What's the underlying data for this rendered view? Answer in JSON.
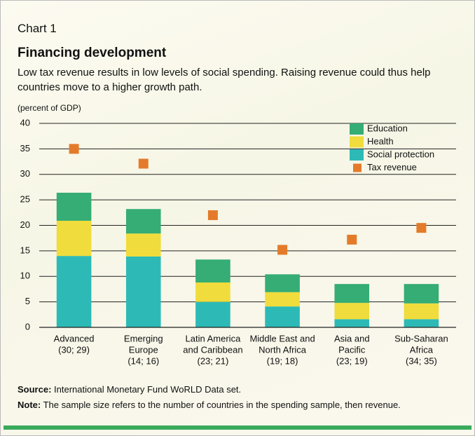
{
  "header": {
    "kicker": "Chart 1",
    "title": "Financing development",
    "subtitle": "Low tax revenue results in low levels of social spending. Raising revenue could thus help countries move to a higher growth path."
  },
  "chart_data": {
    "type": "bar",
    "stacked": true,
    "y_label": "(percent of GDP)",
    "categories": [
      [
        "Advanced",
        "(30; 29)"
      ],
      [
        "Emerging",
        "Europe",
        "(14; 16)"
      ],
      [
        "Latin America",
        "and Caribbean",
        "(23; 21)"
      ],
      [
        "Middle East and",
        "North Africa",
        "(19; 18)"
      ],
      [
        "Asia and",
        "Pacific",
        "(23; 19)"
      ],
      [
        "Sub-Saharan",
        "Africa",
        "(34; 35)"
      ]
    ],
    "series": [
      {
        "name": "Social protection",
        "color": "#2dbab6",
        "values": [
          14.0,
          13.9,
          5.0,
          4.1,
          1.6,
          1.6
        ]
      },
      {
        "name": "Health",
        "color": "#f0dc3c",
        "values": [
          6.9,
          4.5,
          3.8,
          2.8,
          3.2,
          3.1
        ]
      },
      {
        "name": "Education",
        "color": "#35ad74",
        "values": [
          5.5,
          4.8,
          4.5,
          3.5,
          3.7,
          3.8
        ]
      },
      {
        "name": "Tax revenue",
        "color": "#e47b2a",
        "type": "scatter",
        "values": [
          35.0,
          32.1,
          22.0,
          15.2,
          17.2,
          19.5
        ]
      }
    ],
    "ylim": [
      0,
      40
    ],
    "yticks": [
      0,
      5,
      10,
      15,
      20,
      25,
      30,
      35,
      40
    ],
    "grid": true
  },
  "footer": {
    "source": {
      "label": "Source:",
      "text": "International Monetary Fund WoRLD Data set."
    },
    "note": {
      "label": "Note:",
      "text": "The sample size refers to the number of countries in the spending sample, then revenue."
    }
  }
}
